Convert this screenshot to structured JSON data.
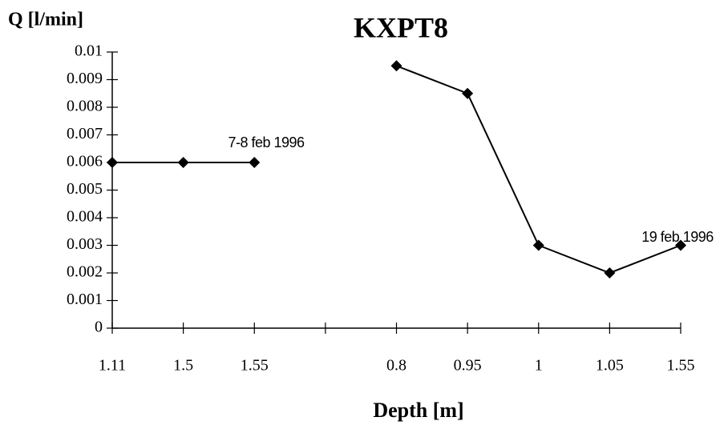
{
  "chart_data": {
    "type": "line",
    "title": "KXPT8",
    "y_label": "Q [l/min]",
    "x_label": "Depth [m]",
    "categories": [
      "1.11",
      "1.5",
      "1.55",
      null,
      "0.8",
      "0.95",
      "1",
      "1.05",
      "1.55"
    ],
    "values": [
      0.006,
      0.006,
      0.006,
      null,
      0.0095,
      0.0085,
      0.003,
      0.002,
      0.003
    ],
    "color": "#000000",
    "annotations": [
      "7-8 feb 1996",
      "19 feb 1996"
    ],
    "ylim": [
      0,
      0.01
    ],
    "yticks": [
      0,
      0.001,
      0.002,
      0.003,
      0.004,
      0.005,
      0.006,
      0.007,
      0.008,
      0.009,
      0.01
    ],
    "grid": false
  }
}
